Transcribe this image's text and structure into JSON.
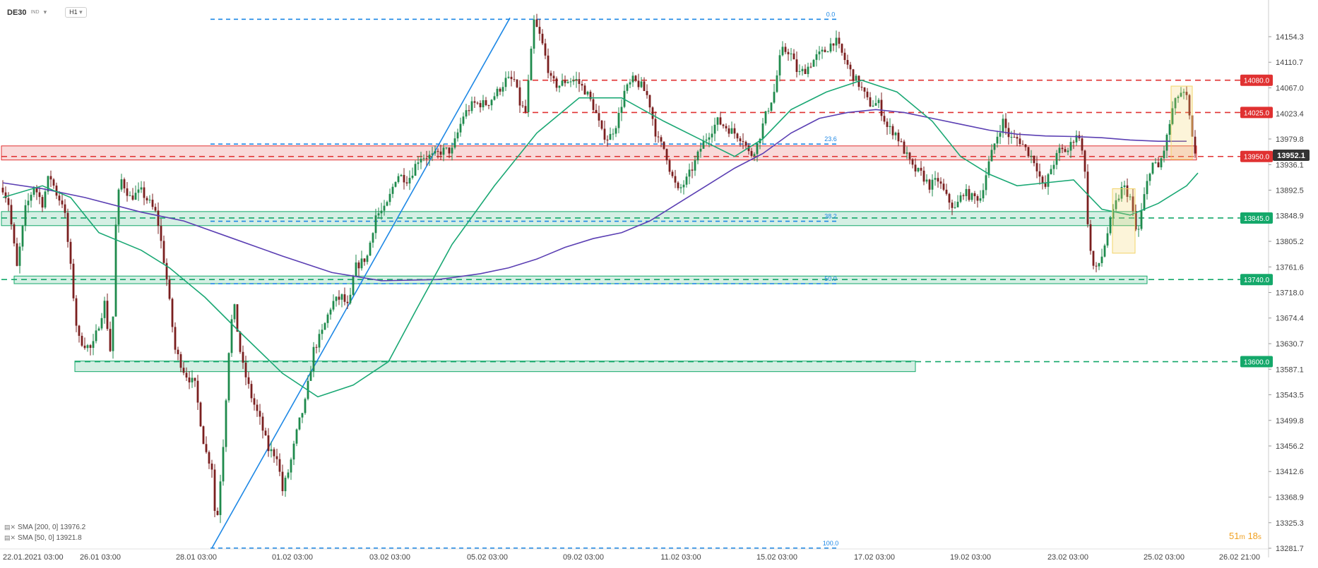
{
  "header": {
    "symbol": "DE30",
    "symbol_badge": "IND",
    "timeframe": "H1"
  },
  "legend": [
    {
      "label": "SMA [200, 0] 13976.2",
      "color": "#5b3fb3"
    },
    {
      "label": "SMA [50, 0] 13921.8",
      "color": "#1aa874"
    }
  ],
  "countdown": {
    "minutes": "51",
    "m": "m",
    "seconds": "18",
    "s": "s"
  },
  "colors": {
    "up_candle": "#1f8a4c",
    "down_candle": "#7a1f1f",
    "resistance": "#e03131",
    "support": "#14a86a",
    "fib": "#1e88e5",
    "sma200": "#5b3fb3",
    "sma50": "#1aa874",
    "highlight": "#f2d469"
  },
  "chart_data": {
    "type": "candlestick",
    "instrument": "DE30",
    "timeframe": "H1",
    "ylim": [
      13281.7,
      14200.0
    ],
    "y_ticks": [
      "14154.3",
      "14110.7",
      "14067.0",
      "14023.4",
      "13979.8",
      "13936.1",
      "13892.5",
      "13848.9",
      "13805.2",
      "13761.6",
      "13718.0",
      "13674.4",
      "13630.7",
      "13587.1",
      "13543.5",
      "13499.8",
      "13456.2",
      "13412.6",
      "13368.9",
      "13325.3",
      "13281.7"
    ],
    "x_ticks": [
      "22.01.2021  03:00",
      "26.01  03:00",
      "28.01  03:00",
      "01.02  03:00",
      "03.02  03:00",
      "05.02  03:00",
      "09.02  03:00",
      "11.02  03:00",
      "15.02  03:00",
      "17.02  03:00",
      "19.02  03:00",
      "23.02  03:00",
      "25.02  03:00",
      "26.02  21:00"
    ],
    "current_price": "13952.1",
    "level_labels": [
      {
        "label": "14080.0",
        "value": 14080.0,
        "kind": "resistance"
      },
      {
        "label": "14025.0",
        "value": 14025.0,
        "kind": "resistance"
      },
      {
        "label": "13950.0",
        "value": 13950.0,
        "kind": "resistance"
      },
      {
        "label": "13845.0",
        "value": 13845.0,
        "kind": "support"
      },
      {
        "label": "13740.0",
        "value": 13740.0,
        "kind": "support"
      },
      {
        "label": "13600.0",
        "value": 13600.0,
        "kind": "support"
      }
    ],
    "fibonacci": {
      "high": 14184,
      "low": 13282,
      "levels": [
        {
          "label": "0.0",
          "ratio": 0.0
        },
        {
          "label": "23.6",
          "ratio": 0.236
        },
        {
          "label": "38.2",
          "ratio": 0.382
        },
        {
          "label": "50.0",
          "ratio": 0.5
        },
        {
          "label": "100.0",
          "ratio": 1.0
        }
      ]
    },
    "zones": [
      {
        "kind": "resistance",
        "from": 13944,
        "to": 13968
      },
      {
        "kind": "support",
        "from": 13832,
        "to": 13856
      },
      {
        "kind": "support",
        "from": 13733,
        "to": 13746
      },
      {
        "kind": "support",
        "from": 13583,
        "to": 13601
      }
    ],
    "series": [
      {
        "name": "SMA [200, 0]",
        "value": 13976.2
      },
      {
        "name": "SMA [50, 0]",
        "value": 13921.8
      }
    ],
    "grid": false
  }
}
